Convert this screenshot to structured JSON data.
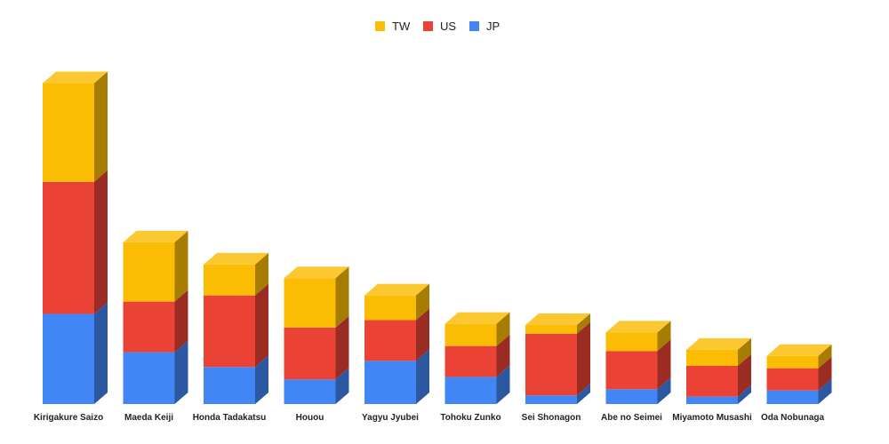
{
  "chart_data": {
    "type": "bar",
    "stacked": true,
    "three_d": true,
    "title": "",
    "xlabel": "",
    "ylabel": "",
    "legend_position": "top",
    "grid": false,
    "ylim": [
      0,
      260
    ],
    "categories": [
      "Kirigakure Saizo",
      "Maeda Keiji",
      "Honda Tadakatsu",
      "Houou",
      "Yagyu Jyubei",
      "Tohoku Zunko",
      "Sei Shonagon",
      "Abe no Seimei",
      "Miyamoto Musashi",
      "Oda Nobunaga"
    ],
    "series": [
      {
        "name": "JP",
        "color": "#4285f4",
        "values": [
          73,
          42,
          30,
          20,
          35,
          22,
          7,
          12,
          6,
          11
        ]
      },
      {
        "name": "US",
        "color": "#ea4335",
        "values": [
          107,
          41,
          58,
          42,
          33,
          25,
          50,
          31,
          25,
          18
        ]
      },
      {
        "name": "TW",
        "color": "#fbbc04",
        "values": [
          80,
          48,
          25,
          40,
          20,
          18,
          7,
          15,
          13,
          10
        ]
      }
    ],
    "legend_order": [
      "TW",
      "US",
      "JP"
    ]
  }
}
